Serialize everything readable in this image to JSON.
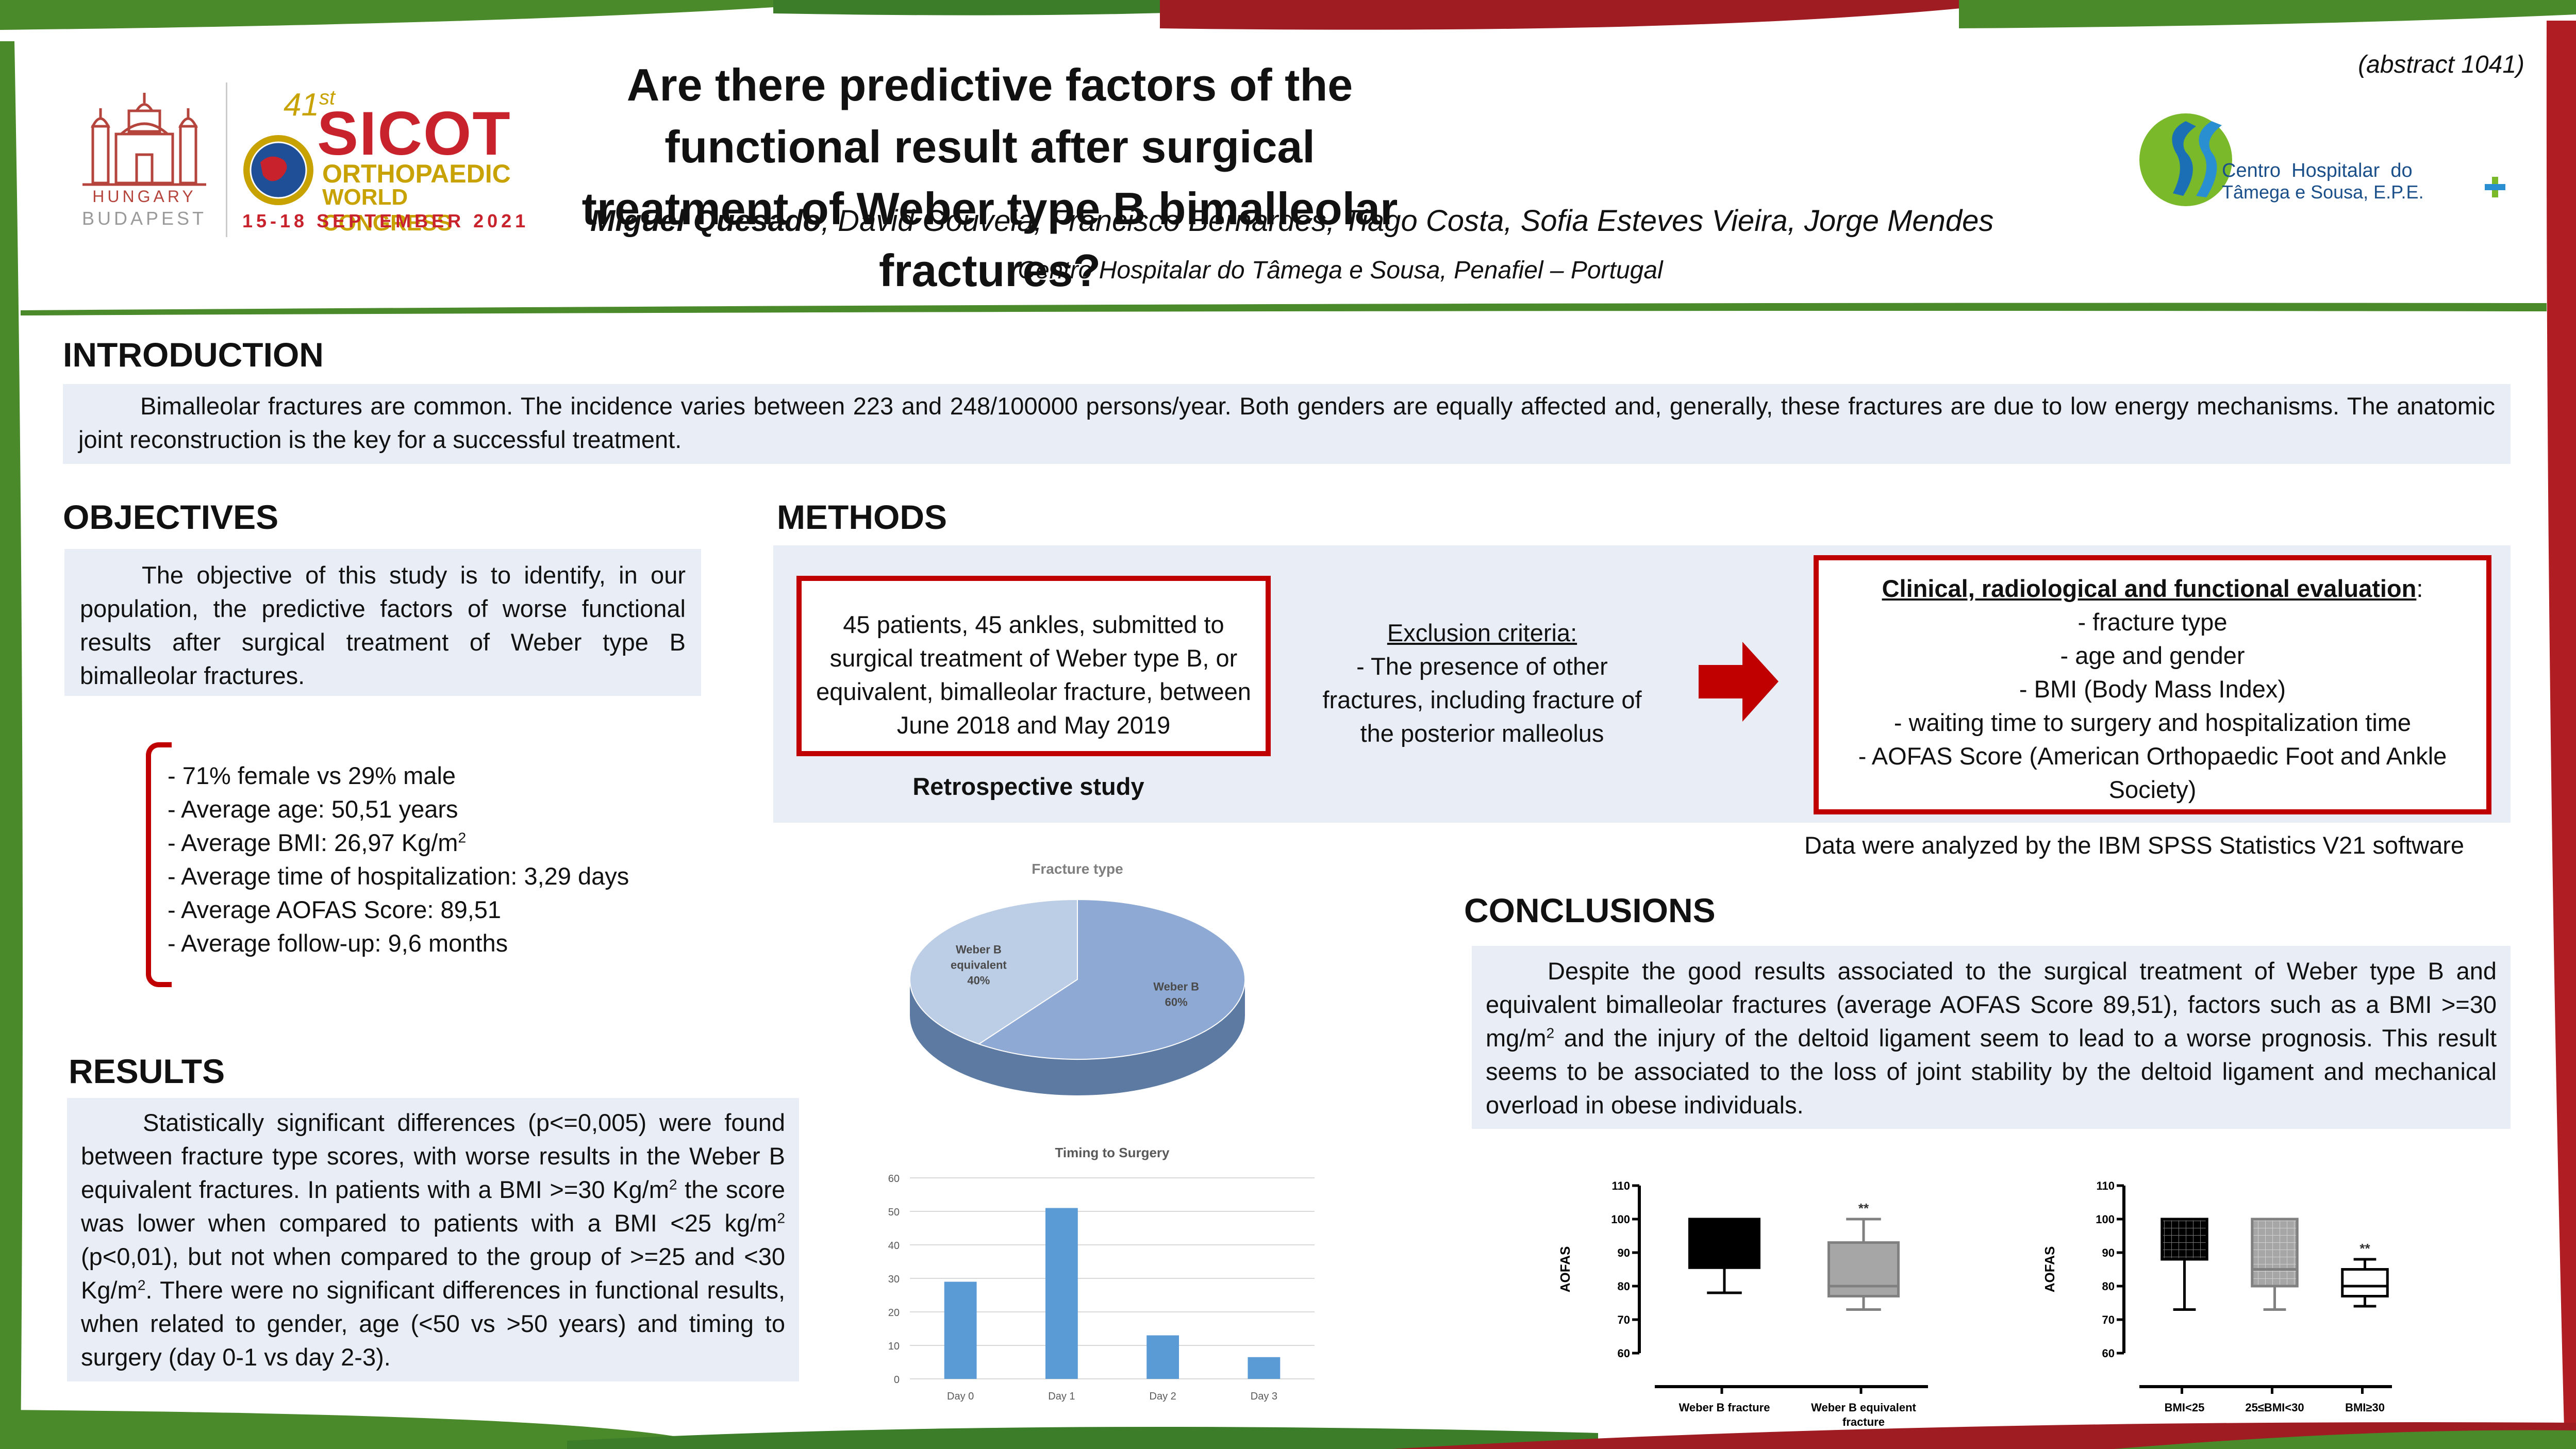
{
  "header": {
    "title_line1": "Are there predictive factors of the functional result after surgical",
    "title_line2": "treatment of Weber type B bimalleolar fractures?",
    "presenting_author": "Miguel Quesado",
    "coauthors": ", David Gouveia, Francisco Bernardes, Tiago Costa, Sofia Esteves Vieira, Jorge Mendes",
    "affiliation": "Centro Hospitalar do Tâmega e Sousa, Penafiel – Portugal",
    "abstract_id": "(abstract 1041)",
    "congress": {
      "city_line1": "HUNGARY",
      "city_line2": "BUDAPEST",
      "edition": "41",
      "edition_suffix": "st",
      "name": "SICOT",
      "line2": "ORTHOPAEDIC",
      "line3": "WORLD CONGRESS",
      "dates": "15-18 SEPTEMBER 2021"
    },
    "hospital_logo": {
      "line1": "Centro  Hospitalar  do",
      "line2": "Tâmega e Sousa, E.P.E."
    }
  },
  "introduction": {
    "heading": "INTRODUCTION",
    "text": "Bimalleolar fractures are common. The incidence varies between 223 and 248/100000 persons/year. Both genders are equally affected and, generally, these fractures are due to low energy mechanisms. The anatomic joint reconstruction is the key for a successful treatment."
  },
  "objectives": {
    "heading": "OBJECTIVES",
    "text": "The objective of this study is to identify, in our population, the predictive factors of worse functional results after surgical treatment of Weber type B bimalleolar fractures."
  },
  "demographics": [
    "- 71% female vs 29% male",
    "- Average age: 50,51 years",
    "- Average BMI: 26,97 Kg/m",
    "- Average time of hospitalization: 3,29 days",
    "- Average AOFAS Score:  89,51",
    "- Average follow-up: 9,6 months"
  ],
  "demographics_bmi_sup": "2",
  "methods": {
    "heading": "METHODS",
    "patients": "45 patients, 45 ankles, submitted to surgical treatment of Weber type B, or equivalent, bimalleolar fracture, between June 2018 and May 2019",
    "study_type": "Retrospective study",
    "exclusion_title": "Exclusion criteria:",
    "exclusion_text": "- The presence of other fractures, including fracture of the posterior malleolus",
    "evaluation_title": "Clinical, radiological and functional evaluation",
    "evaluation_colon": ":",
    "evaluation_items": [
      "- fracture type",
      "- age and gender",
      "- BMI (Body Mass Index)",
      "- waiting time to surgery and hospitalization time",
      "- AOFAS Score (American Orthopaedic Foot and Ankle Society)"
    ],
    "software": "Data were analyzed by the IBM SPSS Statistics V21 software"
  },
  "results": {
    "heading": "RESULTS",
    "text_html": "Statistically significant differences (p&lt;=0,005) were found between fracture type scores, with worse results in the Weber B equivalent fractures. In patients with a BMI &gt;=30 Kg/m<sup>2</sup> the score was lower when compared to patients with a BMI &lt;25 kg/m<sup>2</sup> (p&lt;0,01), but not when compared to the group of &gt;=25 and &lt;30 Kg/m<sup>2</sup>. There were no significant differences in functional results, when related to gender, age (&lt;50 vs &gt;50 years)  and timing to surgery (day 0-1 vs day 2-3)."
  },
  "conclusions": {
    "heading": "CONCLUSIONS",
    "text_html": "Despite the good results associated to the surgical treatment of Weber type B and equivalent bimalleolar fractures (average AOFAS Score 89,51), factors such as a BMI &gt;=30 mg/m<sup>2</sup> and the injury of the deltoid ligament seem to lead to a worse prognosis. This result seems to be associated to the loss of joint stability by the deltoid ligament and mechanical overload in obese individuals."
  },
  "chart_data": [
    {
      "type": "pie",
      "title": "Fracture type",
      "slices": [
        {
          "label": "Weber B",
          "value": 60,
          "pct_label": "60%",
          "color": "#8eaad4"
        },
        {
          "label": "Weber B equivalent",
          "label_lines": [
            "Weber B",
            "equivalent"
          ],
          "value": 40,
          "pct_label": "40%",
          "color": "#bccde6"
        }
      ],
      "style": "3d"
    },
    {
      "type": "bar",
      "title": "Timing to Surgery",
      "categories": [
        "Day 0",
        "Day 1",
        "Day 2",
        "Day 3"
      ],
      "values": [
        29,
        51,
        13,
        6.5
      ],
      "ylim": [
        0,
        60
      ],
      "yticks": [
        0,
        10,
        20,
        30,
        40,
        50,
        60
      ],
      "grid": true,
      "color": "#5b9bd5"
    },
    {
      "type": "boxplot",
      "ylabel": "AOFAS",
      "ylim": [
        60,
        110
      ],
      "yticks": [
        60,
        70,
        80,
        90,
        100,
        110
      ],
      "groups": [
        {
          "label": "Weber B fracture",
          "label_lines": [
            "Weber B fracture"
          ],
          "whisker_low": 78,
          "q1": 85.5,
          "median": 100,
          "q3": 100,
          "whisker_high": 100,
          "fill": "solid-black",
          "mark": ""
        },
        {
          "label": "Weber B equivalent fracture",
          "label_lines": [
            "Weber B equivalent",
            "fracture"
          ],
          "whisker_low": 73,
          "q1": 77,
          "median": 80,
          "q3": 93,
          "whisker_high": 100,
          "fill": "grey",
          "mark": "**"
        }
      ]
    },
    {
      "type": "boxplot",
      "ylabel": "AOFAS",
      "ylim": [
        60,
        110
      ],
      "yticks": [
        60,
        70,
        80,
        90,
        100,
        110
      ],
      "groups": [
        {
          "label": "BMI<25",
          "label_lines": [
            "BMI<25"
          ],
          "whisker_low": 73,
          "q1": 88,
          "median": 100,
          "q3": 100,
          "whisker_high": 100,
          "fill": "black-grid",
          "mark": ""
        },
        {
          "label": "25≤BMI<30",
          "label_lines": [
            "25≤BMI<30"
          ],
          "whisker_low": 73,
          "q1": 80,
          "median": 85,
          "q3": 100,
          "whisker_high": 100,
          "fill": "grey-grid",
          "mark": ""
        },
        {
          "label": "BMI≥30",
          "label_lines": [
            "BMI≥30"
          ],
          "whisker_low": 74,
          "q1": 77,
          "median": 80,
          "q3": 85,
          "whisker_high": 88,
          "fill": "white",
          "mark": "**"
        }
      ]
    }
  ]
}
